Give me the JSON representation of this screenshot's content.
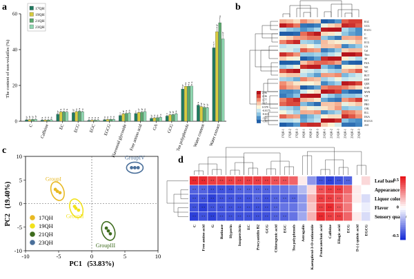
{
  "figure": {
    "panel_labels": [
      "a",
      "b",
      "c",
      "d"
    ]
  },
  "chart_data": [
    {
      "panel": "a",
      "type": "bar",
      "ylabel": "The content of non-volatiles (%)",
      "ylim": [
        0,
        60
      ],
      "yticks": [
        0,
        20,
        40,
        60
      ],
      "categories": [
        "C",
        "Caffeine",
        "EC",
        "ECG",
        "EGC",
        "EGCG",
        "Flavonoid glycoside",
        "Free amino acid",
        "GA",
        "GCG",
        "Tea polyphenols",
        "Water content",
        "Water extract"
      ],
      "series": [
        {
          "name": "17QH",
          "color": "#1f7a60",
          "values": [
            0.8,
            0.6,
            3.9,
            4.8,
            0.5,
            0.9,
            3.2,
            4.3,
            1.6,
            2.9,
            18.0,
            9.0,
            41.0
          ]
        },
        {
          "name": "19QH",
          "color": "#d8cc3f",
          "values": [
            0.9,
            0.7,
            5.2,
            5.4,
            0.6,
            1.0,
            4.1,
            4.9,
            1.9,
            3.6,
            19.5,
            8.2,
            50.0
          ]
        },
        {
          "name": "21QH",
          "color": "#5aa86d",
          "values": [
            1.0,
            0.7,
            5.3,
            5.6,
            0.6,
            1.1,
            4.4,
            5.1,
            2.0,
            3.7,
            19.6,
            7.8,
            55.0
          ]
        },
        {
          "name": "23QH",
          "color": "#8fd6b0",
          "values": [
            1.1,
            0.8,
            5.1,
            5.3,
            0.6,
            1.1,
            4.6,
            5.4,
            2.2,
            4.2,
            19.7,
            7.6,
            46.0
          ]
        }
      ],
      "sig_letters": [
        [
          "b",
          "b",
          "b",
          "b"
        ],
        [
          "a",
          "a",
          "a",
          "a"
        ],
        [
          "b",
          "a",
          "a",
          "a"
        ],
        [
          "b",
          "a",
          "a",
          "a"
        ],
        [
          "a",
          "a",
          "a",
          "a"
        ],
        [
          "a",
          "a",
          "a",
          "a"
        ],
        [
          "c",
          "b",
          "a",
          "a"
        ],
        [
          "c",
          "b",
          "b",
          "a"
        ],
        [
          "b",
          "a",
          "a",
          "a"
        ],
        [
          "c",
          "b",
          "b",
          "a"
        ],
        [
          "b",
          "a",
          "a",
          "a"
        ],
        [
          "a",
          "b",
          "b",
          "b"
        ],
        [
          "c",
          "b",
          "a",
          "b"
        ]
      ],
      "legend_position": "top-left"
    },
    {
      "panel": "b",
      "type": "heatmap",
      "columns": [
        "17QH-1",
        "17QH-2",
        "17QH-3",
        "19QH-1",
        "19QH-2",
        "19QH-3",
        "21QH-1",
        "21QH-2",
        "21QH-3",
        "23QH-1",
        "23QH-2",
        "23QH-3"
      ],
      "rows": [
        "EGC",
        "GCG",
        "EGCG",
        "C",
        "EC",
        "ECG",
        "GA",
        "Caf",
        "Theo",
        "TP",
        "FAA",
        "WE",
        "WC",
        "RUT",
        "HYP",
        "QUE",
        "KAE",
        "MYR",
        "VIT",
        "ISO",
        "PRO",
        "CHL",
        "ELL",
        "DGA",
        "EGCG3",
        "ASI"
      ],
      "legend_values": [
        "2.96",
        "2.36",
        "1.77",
        "1.17",
        "0.578",
        "-0.0175",
        "-0.613",
        "-1.21",
        "-1.81"
      ],
      "legend_colors": [
        "#b5131b",
        "#d94438",
        "#f08a6e",
        "#f7c6a9",
        "#fbf6d9",
        "#c7e6f0",
        "#8cc4e2",
        "#4a8fc8",
        "#1f5ea8"
      ]
    },
    {
      "panel": "c",
      "type": "scatter",
      "xlabel": "PC1   (53.83%)",
      "ylabel": "PC2   (19.40%)",
      "xlim": [
        -10,
        10
      ],
      "ylim": [
        -10,
        10
      ],
      "xticks": [
        -10,
        -5,
        0,
        5,
        10
      ],
      "yticks": [
        -10,
        -5,
        0,
        5,
        10
      ],
      "series": [
        {
          "name": "17QH",
          "color": "#e8b923",
          "points": [
            [
              -5.5,
              3.0
            ],
            [
              -4.8,
              2.3
            ],
            [
              -5.2,
              2.6
            ]
          ]
        },
        {
          "name": "19QH",
          "color": "#f2e21b",
          "points": [
            [
              -2.6,
              -0.6
            ],
            [
              -2.0,
              -1.4
            ],
            [
              -2.4,
              -1.0
            ]
          ]
        },
        {
          "name": "21QH",
          "color": "#3d6b1d",
          "points": [
            [
              2.2,
              -5.2
            ],
            [
              2.8,
              -6.4
            ],
            [
              2.5,
              -5.8
            ]
          ]
        },
        {
          "name": "23QH",
          "color": "#4a6f9a",
          "points": [
            [
              6.0,
              7.6
            ],
            [
              7.0,
              7.6
            ],
            [
              6.5,
              7.6
            ]
          ]
        }
      ],
      "groups": [
        {
          "label": "GroupI",
          "color": "#e8b923"
        },
        {
          "label": "GroupII",
          "color": "#f2e21b"
        },
        {
          "label": "GroupIII",
          "color": "#3d6b1d"
        },
        {
          "label": "GroupIV",
          "color": "#4a6f9a"
        }
      ],
      "legend_position": "bottom-left"
    },
    {
      "panel": "d",
      "type": "heatmap",
      "rows": [
        "Leaf base",
        "Appearance",
        "Liquor color",
        "Flavor",
        "Sensory quality"
      ],
      "columns": [
        "C",
        "Free amino acid",
        "G",
        "Rutinase",
        "Hyperin",
        "Isoquercitrin",
        "EC",
        "Procyanidin B2",
        "GCG",
        "Chlorogenic acid",
        "EGC",
        "Tea polyphenols",
        "Astragalin",
        "Kaempferol-3-O-rutinoside",
        "Protocatechuic acid",
        "Caffeine",
        "Ellagic acid",
        "ECG",
        "D-(-) quinic acid",
        "EGCG"
      ],
      "values": [
        [
          0.55,
          0.55,
          0.5,
          0.5,
          0.5,
          0.5,
          0.5,
          0.5,
          0.5,
          0.45,
          0.45,
          0.4,
          0.05,
          -0.3,
          -0.5,
          -0.55,
          -0.5,
          -0.45,
          0.0,
          0.1
        ],
        [
          -0.45,
          -0.45,
          -0.5,
          -0.5,
          -0.5,
          -0.45,
          -0.45,
          -0.45,
          -0.45,
          -0.4,
          -0.4,
          -0.35,
          -0.2,
          0.1,
          0.45,
          0.5,
          0.5,
          0.4,
          0.05,
          0.0
        ],
        [
          -0.5,
          -0.5,
          -0.55,
          -0.5,
          -0.5,
          -0.5,
          -0.5,
          -0.45,
          -0.5,
          -0.45,
          -0.45,
          -0.45,
          -0.3,
          0.2,
          0.5,
          0.5,
          0.45,
          0.35,
          0.05,
          -0.1
        ],
        [
          -0.5,
          -0.55,
          -0.5,
          -0.5,
          -0.5,
          -0.5,
          -0.5,
          -0.5,
          -0.5,
          -0.45,
          -0.4,
          -0.4,
          -0.3,
          0.15,
          0.5,
          0.55,
          0.45,
          0.35,
          0.0,
          -0.05
        ],
        [
          -0.55,
          -0.5,
          -0.55,
          -0.5,
          -0.5,
          -0.5,
          -0.5,
          -0.5,
          -0.5,
          -0.45,
          -0.45,
          -0.4,
          -0.25,
          0.2,
          0.55,
          0.5,
          0.5,
          0.4,
          0.05,
          -0.1
        ]
      ],
      "colorbar_ticks": [
        "0.5",
        "0",
        "-0.5"
      ],
      "colorbar_colors": [
        "#e8171c",
        "#ffffff",
        "#1a2fd6"
      ]
    }
  ]
}
